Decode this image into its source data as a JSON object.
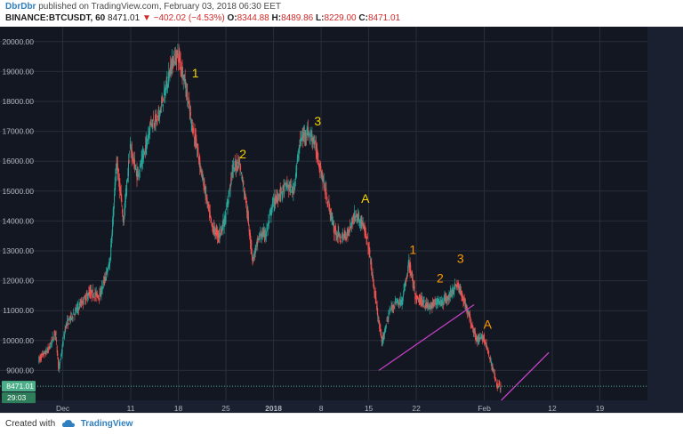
{
  "header": {
    "author": "DbrDbr",
    "published_text": "published on TradingView.com, February 03, 2018 06:30 EET",
    "symbol": "BINANCE:BTCUSDT, 60",
    "last": "8471.01",
    "change": "▼ −402.02 (−4.53%)",
    "o_label": "O:",
    "o_value": "8344.88",
    "h_label": "H:",
    "h_value": "8489.86",
    "l_label": "L:",
    "l_value": "8229.00",
    "c_label": "C:",
    "c_value": "8471.01"
  },
  "footer": {
    "created_with": "Created with",
    "brand": "TradingView",
    "brand_icon": "tradingview-logo-icon"
  },
  "colors": {
    "background": "#131722",
    "up": "#26a69a",
    "down": "#ef5350",
    "label_yellow": "#f5d300",
    "label_orange": "#ff9800",
    "trendline": "#c33fc3",
    "price_line": "#4caf89"
  },
  "chart_data": {
    "type": "candlestick",
    "price_axis_labels": [
      "20000.00",
      "19000.00",
      "18000.00",
      "17000.00",
      "16000.00",
      "15000.00",
      "14000.00",
      "13000.00",
      "12000.00",
      "11000.00",
      "10000.00",
      "9000.00"
    ],
    "ylim": [
      8000,
      20500
    ],
    "time_axis_labels": [
      {
        "label": "Dec",
        "day": 0
      },
      {
        "label": "11",
        "day": 10
      },
      {
        "label": "18",
        "day": 17
      },
      {
        "label": "25",
        "day": 24
      },
      {
        "label": "2018",
        "day": 31
      },
      {
        "label": "8",
        "day": 38
      },
      {
        "label": "15",
        "day": 45
      },
      {
        "label": "22",
        "day": 52
      },
      {
        "label": "Feb",
        "day": 62
      },
      {
        "label": "12",
        "day": 72
      },
      {
        "label": "19",
        "day": 79
      }
    ],
    "xlim": [
      -4,
      86
    ],
    "current_price": {
      "value": 8471.01,
      "label": "8471.01",
      "countdown": "29:03"
    },
    "price_path": [
      [
        -3.5,
        9350
      ],
      [
        -2,
        9700
      ],
      [
        -1,
        10300
      ],
      [
        -0.5,
        9000
      ],
      [
        0.5,
        10500
      ],
      [
        2,
        11000
      ],
      [
        4,
        11600
      ],
      [
        5.5,
        11500
      ],
      [
        7,
        12600
      ],
      [
        8,
        16000
      ],
      [
        9,
        14000
      ],
      [
        10,
        16500
      ],
      [
        11,
        15500
      ],
      [
        12,
        16200
      ],
      [
        13,
        17300
      ],
      [
        14,
        17400
      ],
      [
        15,
        18200
      ],
      [
        16,
        19200
      ],
      [
        17,
        19600
      ],
      [
        18,
        18700
      ],
      [
        19,
        17300
      ],
      [
        20,
        16200
      ],
      [
        21,
        15000
      ],
      [
        22,
        13800
      ],
      [
        23,
        13500
      ],
      [
        24,
        14100
      ],
      [
        25,
        15700
      ],
      [
        26,
        16000
      ],
      [
        27,
        14700
      ],
      [
        28,
        12700
      ],
      [
        29,
        13500
      ],
      [
        30,
        13600
      ],
      [
        31,
        14600
      ],
      [
        32,
        14900
      ],
      [
        33,
        15200
      ],
      [
        34,
        15000
      ],
      [
        35,
        16700
      ],
      [
        36,
        17000
      ],
      [
        37,
        16700
      ],
      [
        38,
        15700
      ],
      [
        39,
        14700
      ],
      [
        40,
        13700
      ],
      [
        41,
        13400
      ],
      [
        42,
        13600
      ],
      [
        43,
        14200
      ],
      [
        44,
        14000
      ],
      [
        45,
        13200
      ],
      [
        46,
        11500
      ],
      [
        47,
        9900
      ],
      [
        48,
        10900
      ],
      [
        49,
        11300
      ],
      [
        50,
        11300
      ],
      [
        51,
        12600
      ],
      [
        52,
        11400
      ],
      [
        53,
        11300
      ],
      [
        54,
        11100
      ],
      [
        55,
        11300
      ],
      [
        56,
        11300
      ],
      [
        57,
        11500
      ],
      [
        58,
        11900
      ],
      [
        59,
        11400
      ],
      [
        60,
        10700
      ],
      [
        61,
        10000
      ],
      [
        62,
        10100
      ],
      [
        63,
        9300
      ],
      [
        64,
        8500
      ],
      [
        64.5,
        8450
      ]
    ],
    "wave_labels": [
      {
        "text": "1",
        "day": 19.5,
        "price": 18800,
        "color": "yellow"
      },
      {
        "text": "2",
        "day": 26.5,
        "price": 16100,
        "color": "yellow"
      },
      {
        "text": "3",
        "day": 37.5,
        "price": 17200,
        "color": "yellow"
      },
      {
        "text": "A",
        "day": 44.5,
        "price": 14600,
        "color": "yellow"
      },
      {
        "text": "1",
        "day": 51.5,
        "price": 12900,
        "color": "orange"
      },
      {
        "text": "2",
        "day": 55.5,
        "price": 11950,
        "color": "orange"
      },
      {
        "text": "3",
        "day": 58.5,
        "price": 12600,
        "color": "orange"
      },
      {
        "text": "A",
        "day": 62.5,
        "price": 10400,
        "color": "orange"
      }
    ],
    "trendlines": [
      {
        "from": [
          46.5,
          9000
        ],
        "to": [
          60.5,
          11200
        ]
      },
      {
        "from": [
          64.5,
          8000
        ],
        "to": [
          71.5,
          9600
        ]
      }
    ],
    "grid": true
  }
}
